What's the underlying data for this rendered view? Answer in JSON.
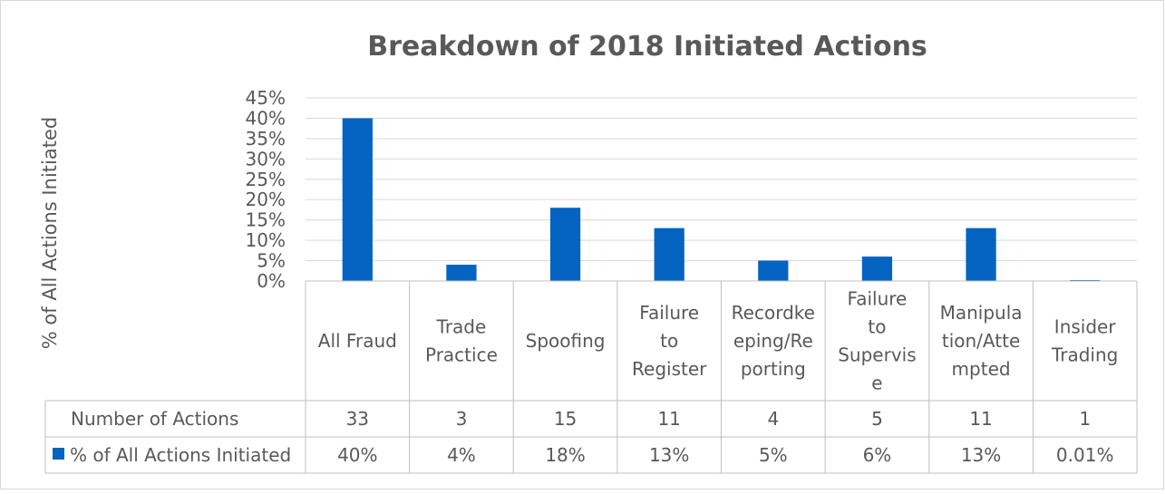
{
  "chart_data": {
    "type": "bar",
    "title": "Breakdown of 2018 Initiated Actions",
    "ylabel": "% of All Actions Initiated",
    "ylim": [
      0,
      45
    ],
    "yticks": [
      "0%",
      "5%",
      "10%",
      "15%",
      "20%",
      "25%",
      "30%",
      "35%",
      "40%",
      "45%"
    ],
    "grid": true,
    "bar_color": "#0563c1",
    "categories": [
      [
        "All Fraud"
      ],
      [
        "Trade",
        "Practice"
      ],
      [
        "Spoofing"
      ],
      [
        "Failure",
        "to",
        "Register"
      ],
      [
        "Recordke",
        "eping/Re",
        "porting"
      ],
      [
        "Failure",
        "to",
        "Supervis",
        "e"
      ],
      [
        "Manipula",
        "tion/Atte",
        "mpted"
      ],
      [
        "Insider",
        "Trading"
      ]
    ],
    "series": [
      {
        "name": "% of All Actions Initiated",
        "values": [
          40,
          4,
          18,
          13,
          5,
          6,
          13,
          0.01
        ]
      }
    ],
    "table": {
      "rows": [
        {
          "label": "Number of Actions",
          "cells": [
            "33",
            "3",
            "15",
            "11",
            "4",
            "5",
            "11",
            "1"
          ]
        },
        {
          "label": "% of All Actions Initiated",
          "cells": [
            "40%",
            "4%",
            "18%",
            "13%",
            "5%",
            "6%",
            "13%",
            "0.01%"
          ]
        }
      ]
    }
  }
}
